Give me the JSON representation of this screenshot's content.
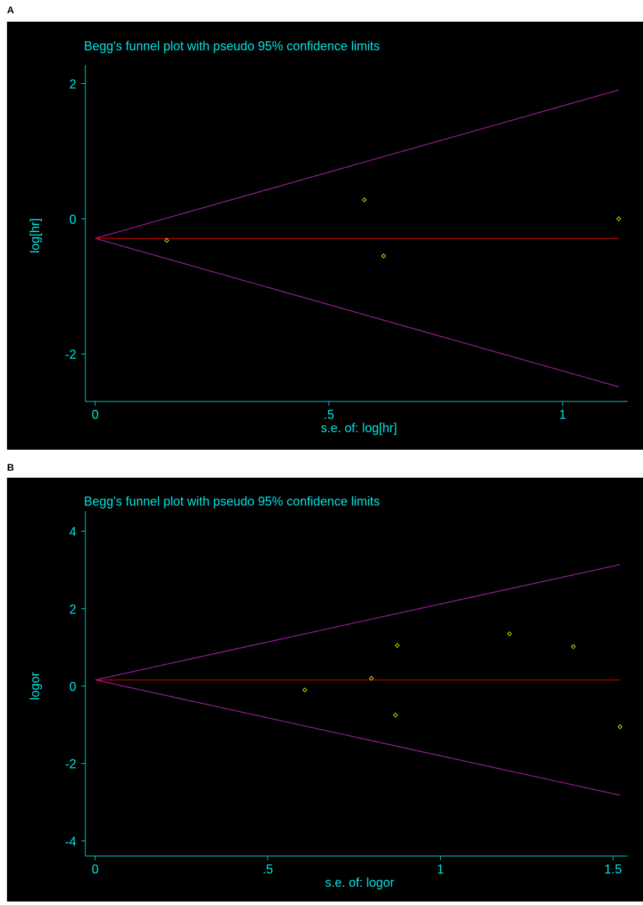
{
  "colors": {
    "background": "#000000",
    "axis_text": "#00e5e5",
    "limits": "#a020a0",
    "pooled": "#d40000",
    "points": "#e0d000"
  },
  "chart_data": [
    {
      "panel": "A",
      "type": "scatter",
      "title": "Begg's funnel plot with pseudo 95% confidence limits",
      "xlabel": "s.e. of: log[hr]",
      "ylabel": "log[hr]",
      "xlim": [
        0,
        1.13
      ],
      "ylim": [
        -2.65,
        2.15
      ],
      "xticks": [
        0,
        0.5,
        1
      ],
      "xtick_labels": [
        "0",
        ".5",
        "1"
      ],
      "yticks": [
        -2,
        0,
        2
      ],
      "ytick_labels": [
        "-2",
        "0",
        "2"
      ],
      "pooled_estimate": -0.29,
      "points": [
        {
          "x": 0.153,
          "y": -0.32
        },
        {
          "x": 0.576,
          "y": 0.28
        },
        {
          "x": 0.617,
          "y": -0.55
        },
        {
          "x": 1.12,
          "y": 0.0
        }
      ],
      "limit_max_se": 1.12
    },
    {
      "panel": "B",
      "type": "scatter",
      "title": "Begg's funnel plot with pseudo 95% confidence limits",
      "xlabel": "s.e. of: logor",
      "ylabel": "logor",
      "xlim": [
        0,
        1.53
      ],
      "ylim": [
        -4.3,
        4.3
      ],
      "xticks": [
        0,
        0.5,
        1,
        1.5
      ],
      "xtick_labels": [
        "0",
        ".5",
        "1",
        "1.5"
      ],
      "yticks": [
        -4,
        -2,
        0,
        2,
        4
      ],
      "ytick_labels": [
        "-4",
        "-2",
        "0",
        "2",
        "4"
      ],
      "pooled_estimate": 0.16,
      "points": [
        {
          "x": 0.607,
          "y": -0.1
        },
        {
          "x": 0.8,
          "y": 0.2
        },
        {
          "x": 0.87,
          "y": -0.75
        },
        {
          "x": 0.875,
          "y": 1.05
        },
        {
          "x": 1.2,
          "y": 1.35
        },
        {
          "x": 1.385,
          "y": 1.02
        },
        {
          "x": 1.52,
          "y": -1.05
        }
      ],
      "limit_max_se": 1.52
    }
  ]
}
